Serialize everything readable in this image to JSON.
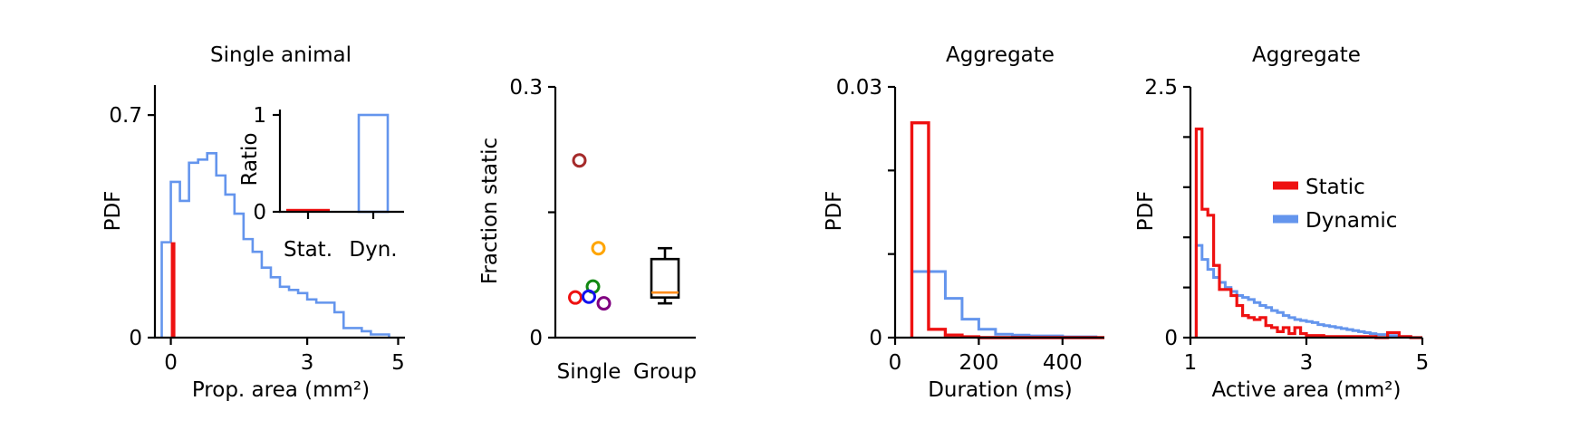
{
  "colors": {
    "static": "#ee1111",
    "dynamic": "#6495ed",
    "box": "#000000",
    "median": "#ff8c1a"
  },
  "chart_data": [
    {
      "id": "single-animal",
      "type": "histogram",
      "title": "Single animal",
      "xlabel": "Prop. area (mm²)",
      "ylabel": "PDF",
      "xlim": [
        -0.35,
        5.15
      ],
      "ylim": [
        0,
        0.8
      ],
      "xticks": [
        0,
        3,
        5
      ],
      "xtick_labels": [
        "0",
        "3",
        "5"
      ],
      "yticks": [
        0,
        0.7
      ],
      "ytick_labels": [
        "0",
        "0.7"
      ],
      "series": [
        {
          "name": "Static",
          "color": "#ee1111",
          "style": "bar",
          "bins": [
            [
              0.0,
              0.1,
              0.3
            ]
          ]
        },
        {
          "name": "Dynamic",
          "color": "#6495ed",
          "style": "step",
          "x": [
            -0.2,
            0.0,
            0.2,
            0.4,
            0.6,
            0.8,
            1.0,
            1.2,
            1.4,
            1.6,
            1.8,
            2.0,
            2.2,
            2.4,
            2.6,
            2.8,
            3.0,
            3.2,
            3.4,
            3.6,
            3.8,
            4.0,
            4.2,
            4.4,
            4.6,
            4.8
          ],
          "y": [
            0.3,
            0.49,
            0.43,
            0.55,
            0.56,
            0.58,
            0.51,
            0.45,
            0.39,
            0.31,
            0.27,
            0.22,
            0.19,
            0.16,
            0.15,
            0.14,
            0.12,
            0.11,
            0.11,
            0.08,
            0.03,
            0.03,
            0.02,
            0.01,
            0.01,
            0.0
          ]
        }
      ],
      "inset": {
        "type": "bar",
        "ylabel": "Ratio",
        "categories": [
          "Stat.",
          "Dyn."
        ],
        "values": [
          0.03,
          1.0
        ],
        "ylim": [
          0,
          1
        ],
        "yticks": [
          0,
          1
        ],
        "ytick_labels": [
          "0",
          "1"
        ]
      }
    },
    {
      "id": "fraction-static",
      "type": "scatter",
      "title": "",
      "ylabel": "Fraction static",
      "categories": [
        "Single",
        "Group"
      ],
      "ylim": [
        0,
        0.3
      ],
      "yticks": [
        0,
        0.15,
        0.3
      ],
      "ytick_labels": [
        "0",
        "",
        "0.3"
      ],
      "points": [
        {
          "category": "Single",
          "offset": -0.35,
          "y": 0.212,
          "color": "#a52a2a"
        },
        {
          "category": "Single",
          "offset": 0.35,
          "y": 0.107,
          "color": "#ffa500"
        },
        {
          "category": "Single",
          "offset": 0.15,
          "y": 0.061,
          "color": "#118811"
        },
        {
          "category": "Single",
          "offset": -0.5,
          "y": 0.048,
          "color": "#ee1111"
        },
        {
          "category": "Single",
          "offset": 0.0,
          "y": 0.049,
          "color": "#1111ee"
        },
        {
          "category": "Single",
          "offset": 0.55,
          "y": 0.041,
          "color": "#800080"
        }
      ],
      "box": {
        "category": "Group",
        "whisker_low": 0.041,
        "q1": 0.048,
        "median": 0.054,
        "q3": 0.094,
        "whisker_high": 0.107
      }
    },
    {
      "id": "aggregate-duration",
      "type": "histogram",
      "title": "Aggregate",
      "xlabel": "Duration (ms)",
      "ylabel": "PDF",
      "xlim": [
        0,
        500
      ],
      "ylim": [
        0,
        0.03
      ],
      "xticks": [
        0,
        200,
        400
      ],
      "xtick_labels": [
        "0",
        "200",
        "400"
      ],
      "yticks": [
        0,
        0.01,
        0.02,
        0.03
      ],
      "ytick_labels": [
        "0",
        "",
        "",
        "0.03"
      ],
      "series": [
        {
          "name": "Static",
          "color": "#ee1111",
          "x": [
            0,
            40,
            80,
            120,
            160,
            200,
            240,
            280,
            320,
            360,
            400,
            440,
            480,
            500
          ],
          "y": [
            0,
            0.0257,
            0.001,
            0.0003,
            0.0001,
            0.0,
            0.0,
            0.0,
            0.0,
            0.0,
            0.0,
            0.0,
            0.0
          ]
        },
        {
          "name": "Dynamic",
          "color": "#6495ed",
          "x": [
            40,
            80,
            120,
            160,
            200,
            240,
            280,
            320,
            360,
            400,
            440,
            480,
            500
          ],
          "y": [
            0.0079,
            0.0079,
            0.0047,
            0.0022,
            0.001,
            0.0004,
            0.0003,
            0.0002,
            0.0002,
            0.0001,
            0.0001,
            0.0
          ]
        }
      ]
    },
    {
      "id": "aggregate-active-area",
      "type": "histogram",
      "title": "Aggregate",
      "xlabel": "Active area (mm²)",
      "ylabel": "PDF",
      "xlim": [
        1,
        5
      ],
      "ylim": [
        0,
        2.5
      ],
      "xticks": [
        1,
        3,
        5
      ],
      "xtick_labels": [
        "1",
        "3",
        "5"
      ],
      "yticks": [
        0,
        0.5,
        1,
        1.5,
        2,
        2.5
      ],
      "ytick_labels": [
        "0",
        "",
        "",
        "",
        "",
        "2.5"
      ],
      "legend": {
        "placement": "right",
        "entries": [
          "Static",
          "Dynamic"
        ]
      },
      "series": [
        {
          "name": "Static",
          "color": "#ee1111",
          "x": [
            1.1,
            1.2,
            1.3,
            1.4,
            1.5,
            1.6,
            1.7,
            1.8,
            1.9,
            2.0,
            2.1,
            2.2,
            2.3,
            2.4,
            2.5,
            2.6,
            2.7,
            2.8,
            2.9,
            3.0,
            3.1,
            3.2,
            3.3,
            3.4,
            3.5,
            3.6,
            3.7,
            3.8,
            3.9,
            4.0,
            4.2,
            4.4,
            4.6,
            4.8,
            5.0
          ],
          "y": [
            2.08,
            1.28,
            1.22,
            0.72,
            0.48,
            0.48,
            0.42,
            0.32,
            0.22,
            0.2,
            0.18,
            0.2,
            0.12,
            0.1,
            0.06,
            0.1,
            0.04,
            0.1,
            0.04,
            0.02,
            0.02,
            0.02,
            0.01,
            0.01,
            0.01,
            0.01,
            0.01,
            0.01,
            0.01,
            0.01,
            0.0,
            0.05,
            0.01,
            0.0
          ]
        },
        {
          "name": "Dynamic",
          "color": "#6495ed",
          "x": [
            1.1,
            1.2,
            1.3,
            1.4,
            1.5,
            1.6,
            1.7,
            1.8,
            1.9,
            2.0,
            2.1,
            2.2,
            2.3,
            2.4,
            2.5,
            2.6,
            2.7,
            2.8,
            2.9,
            3.0,
            3.1,
            3.2,
            3.3,
            3.4,
            3.5,
            3.6,
            3.7,
            3.8,
            3.9,
            4.0,
            4.1,
            4.2,
            4.4,
            4.6,
            4.8,
            5.0
          ],
          "y": [
            0.92,
            0.78,
            0.68,
            0.6,
            0.55,
            0.5,
            0.46,
            0.42,
            0.4,
            0.38,
            0.35,
            0.32,
            0.3,
            0.27,
            0.25,
            0.22,
            0.2,
            0.18,
            0.17,
            0.16,
            0.15,
            0.13,
            0.12,
            0.11,
            0.1,
            0.09,
            0.08,
            0.07,
            0.06,
            0.05,
            0.04,
            0.03,
            0.02,
            0.01,
            0.0
          ]
        }
      ]
    }
  ]
}
